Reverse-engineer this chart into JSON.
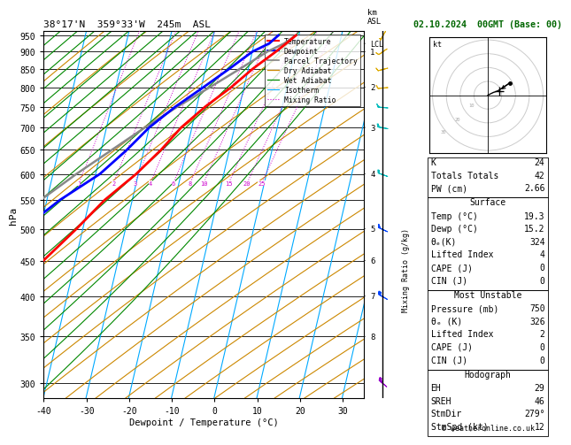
{
  "title_left": "38°17'N  359°33'W  245m  ASL",
  "title_right": "02.10.2024  00GMT (Base: 00)",
  "xlabel": "Dewpoint / Temperature (°C)",
  "ylabel_left": "hPa",
  "pressure_ticks": [
    300,
    350,
    400,
    450,
    500,
    550,
    600,
    650,
    700,
    750,
    800,
    850,
    900,
    950
  ],
  "temp_range": [
    -40,
    35
  ],
  "p_min": 285,
  "p_max": 965,
  "skew_factor": 38.0,
  "temp_profile": {
    "pressure": [
      950,
      925,
      900,
      850,
      800,
      750,
      700,
      650,
      600,
      550,
      500,
      450,
      400,
      350,
      300
    ],
    "temperature": [
      19.3,
      17.5,
      15.5,
      11.0,
      7.0,
      2.0,
      -2.5,
      -6.0,
      -10.5,
      -16.5,
      -21.5,
      -27.5,
      -35.0,
      -43.0,
      -52.0
    ],
    "color": "#ff0000",
    "lw": 2.0
  },
  "dewp_profile": {
    "pressure": [
      950,
      925,
      900,
      850,
      800,
      750,
      700,
      650,
      600,
      550,
      500,
      450,
      400,
      350,
      300
    ],
    "temperature": [
      15.2,
      13.5,
      10.0,
      5.5,
      0.5,
      -5.0,
      -10.0,
      -14.0,
      -19.0,
      -27.0,
      -34.0,
      -41.0,
      -45.0,
      -51.0,
      -59.0
    ],
    "color": "#0000ff",
    "lw": 2.0
  },
  "parcel_profile": {
    "pressure": [
      950,
      925,
      900,
      850,
      800,
      750,
      700,
      650,
      600,
      550,
      500,
      450,
      400,
      350,
      300
    ],
    "temperature": [
      19.3,
      17.0,
      13.5,
      8.0,
      2.0,
      -4.5,
      -11.0,
      -17.5,
      -24.5,
      -31.5,
      -38.5,
      -46.0,
      -53.5,
      -61.5,
      -70.0
    ],
    "color": "#888888",
    "lw": 1.8
  },
  "lcl_pressure": 925,
  "isotherm_color": "#00aaff",
  "dry_adiabat_color": "#cc8800",
  "wet_adiabat_color": "#008800",
  "mixing_ratio_color": "#cc00cc",
  "mixing_ratio_values": [
    1,
    2,
    3,
    4,
    6,
    8,
    10,
    15,
    20,
    25
  ],
  "km_labels": {
    "350": "8",
    "400": "7",
    "450": "6",
    "500": "5",
    "600": "4",
    "700": "3",
    "800": "2",
    "900": "1"
  },
  "wind_barbs": {
    "pressures": [
      300,
      400,
      500,
      600,
      700,
      750,
      800,
      850,
      900,
      950
    ],
    "speeds": [
      35,
      30,
      25,
      20,
      18,
      15,
      12,
      10,
      8,
      5
    ],
    "dirs": [
      310,
      300,
      295,
      290,
      280,
      275,
      265,
      255,
      235,
      210
    ]
  },
  "stats": {
    "K": 24,
    "Totals_Totals": 42,
    "PW_cm": "2.66",
    "Surf_Temp": "19.3",
    "Surf_Dewp": "15.2",
    "Surf_theta_e": 324,
    "Surf_LI": 4,
    "Surf_CAPE": 0,
    "Surf_CIN": 0,
    "MU_Pressure": 750,
    "MU_theta_e": 326,
    "MU_LI": 2,
    "MU_CAPE": 0,
    "MU_CIN": 0,
    "EH": 29,
    "SREH": 46,
    "StmDir": "279°",
    "StmSpd": 12
  },
  "hodograph": {
    "u": [
      0,
      2,
      4,
      7,
      10,
      13,
      16
    ],
    "v": [
      0,
      1,
      2,
      3,
      5,
      7,
      9
    ],
    "storm_u": 8,
    "storm_v": 3
  }
}
